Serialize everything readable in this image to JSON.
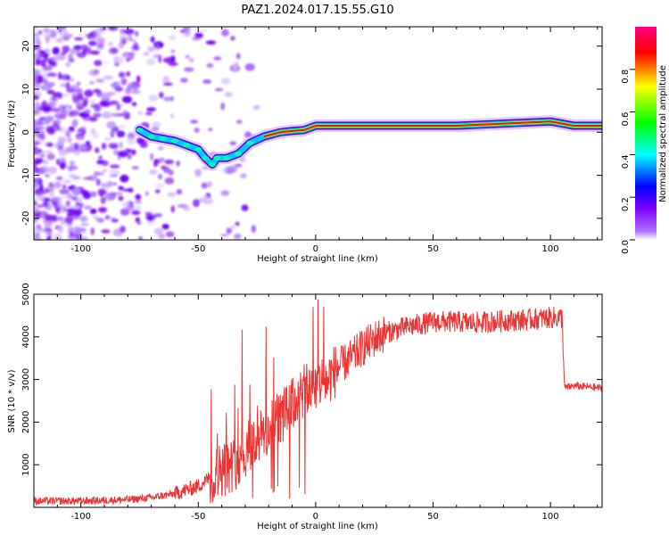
{
  "title": "PAZ1.2024.017.15.55.G10",
  "chart_data": [
    {
      "type": "heatmap",
      "xlabel": "Height of straight line (km)",
      "ylabel": "Frequency (Hz)",
      "xlim": [
        -120,
        122
      ],
      "ylim": [
        -25,
        24.5
      ],
      "xticks": [
        -100,
        -50,
        0,
        50,
        100
      ],
      "yticks": [
        -20,
        -10,
        0,
        10,
        20
      ],
      "colorbar": {
        "label": "Normalized spectral amplitude",
        "range": [
          0,
          1
        ],
        "ticks": [
          "0.0",
          "0.2",
          "0.4",
          "0.6",
          "0.8"
        ],
        "colors": [
          "#ffffff",
          "#7a00ff",
          "#0000ff",
          "#00ffff",
          "#00ff00",
          "#ffff00",
          "#ff0000",
          "#ff0080"
        ]
      },
      "ridge": [
        {
          "x": -75,
          "y": 0.5
        },
        {
          "x": -70,
          "y": -1
        },
        {
          "x": -65,
          "y": -1.5
        },
        {
          "x": -60,
          "y": -2
        },
        {
          "x": -55,
          "y": -3
        },
        {
          "x": -50,
          "y": -4
        },
        {
          "x": -47,
          "y": -6
        },
        {
          "x": -44,
          "y": -7.5
        },
        {
          "x": -42,
          "y": -6
        },
        {
          "x": -38,
          "y": -6
        },
        {
          "x": -33,
          "y": -5
        },
        {
          "x": -28,
          "y": -2.5
        },
        {
          "x": -22,
          "y": -1
        },
        {
          "x": -15,
          "y": 0
        },
        {
          "x": -10,
          "y": 0.3
        },
        {
          "x": -5,
          "y": 0.5
        },
        {
          "x": 0,
          "y": 1.5
        },
        {
          "x": 10,
          "y": 1.5
        },
        {
          "x": 20,
          "y": 1.5
        },
        {
          "x": 40,
          "y": 1.5
        },
        {
          "x": 60,
          "y": 1.5
        },
        {
          "x": 80,
          "y": 2
        },
        {
          "x": 100,
          "y": 2.5
        },
        {
          "x": 110,
          "y": 1.5
        },
        {
          "x": 122,
          "y": 1.5
        }
      ]
    },
    {
      "type": "line",
      "xlabel": "Height of straight line (km)",
      "ylabel": "SNR (10 * v/v)",
      "xlim": [
        -120,
        122
      ],
      "ylim": [
        0,
        5000
      ],
      "xticks": [
        -100,
        -50,
        0,
        50,
        100
      ],
      "yticks": [
        1000,
        2000,
        3000,
        4000,
        5000
      ],
      "color": "#ee3333",
      "envelope": [
        {
          "x": -120,
          "y": 150
        },
        {
          "x": -100,
          "y": 150
        },
        {
          "x": -80,
          "y": 180
        },
        {
          "x": -70,
          "y": 230
        },
        {
          "x": -60,
          "y": 320
        },
        {
          "x": -50,
          "y": 500
        },
        {
          "x": -45,
          "y": 700
        },
        {
          "x": -40,
          "y": 900
        },
        {
          "x": -35,
          "y": 1000
        },
        {
          "x": -30,
          "y": 1300
        },
        {
          "x": -25,
          "y": 1600
        },
        {
          "x": -20,
          "y": 1800
        },
        {
          "x": -15,
          "y": 2100
        },
        {
          "x": -10,
          "y": 2400
        },
        {
          "x": -5,
          "y": 2700
        },
        {
          "x": 0,
          "y": 2900
        },
        {
          "x": 5,
          "y": 3000
        },
        {
          "x": 10,
          "y": 3300
        },
        {
          "x": 15,
          "y": 3500
        },
        {
          "x": 20,
          "y": 3750
        },
        {
          "x": 25,
          "y": 3950
        },
        {
          "x": 30,
          "y": 4100
        },
        {
          "x": 40,
          "y": 4250
        },
        {
          "x": 50,
          "y": 4350
        },
        {
          "x": 60,
          "y": 4350
        },
        {
          "x": 70,
          "y": 4330
        },
        {
          "x": 80,
          "y": 4380
        },
        {
          "x": 90,
          "y": 4400
        },
        {
          "x": 100,
          "y": 4450
        },
        {
          "x": 105,
          "y": 4450
        },
        {
          "x": 106,
          "y": 2800
        },
        {
          "x": 110,
          "y": 2850
        },
        {
          "x": 122,
          "y": 2800
        }
      ]
    }
  ]
}
